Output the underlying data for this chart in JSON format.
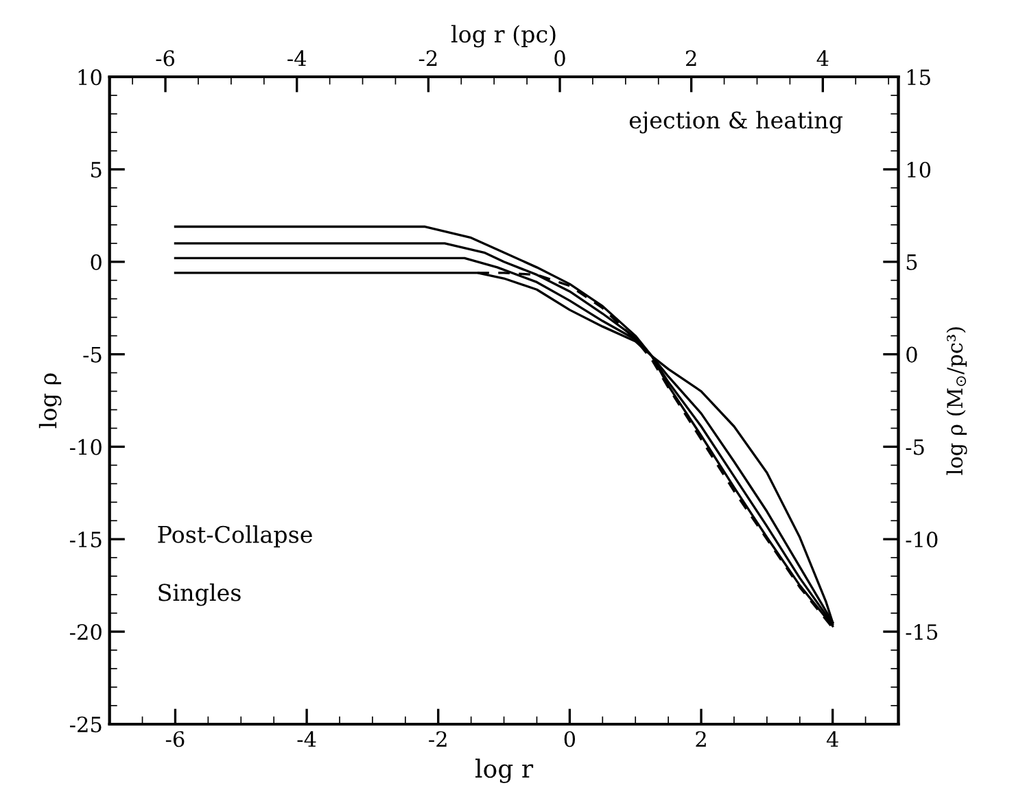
{
  "chart_data": {
    "type": "line",
    "xlabel": "log r",
    "ylabel": "log ρ",
    "y2label": "log ρ (M$_{⊙}$/pc³)",
    "x2label": "log r (pc)",
    "annotations": [
      "ejection & heating",
      "Post-Collapse",
      "Singles"
    ],
    "xlim": [
      -7,
      5
    ],
    "xticks": [
      -6,
      -4,
      -2,
      0,
      2,
      4
    ],
    "x2lim": [
      -6.85,
      5.15
    ],
    "x2ticks": [
      -6,
      -4,
      -2,
      0,
      2,
      4
    ],
    "ylim": [
      -25,
      10
    ],
    "yticks": [
      -25,
      -20,
      -15,
      -10,
      -5,
      0,
      5,
      10
    ],
    "y2lim": [
      -20,
      15
    ],
    "y2ticks": [
      -15,
      -10,
      -5,
      0,
      5,
      10,
      15
    ],
    "grid": false,
    "marker": "none",
    "line_style": "solid",
    "series": [
      {
        "color": "#000000",
        "x": [
          -6,
          -2.2,
          -1.5,
          -1,
          -0.5,
          0,
          0.5,
          1,
          1.25,
          1.5,
          2,
          2.5,
          3,
          3.5,
          4
        ],
        "values": [
          1.9,
          1.9,
          1.3,
          0.5,
          -0.3,
          -1.2,
          -2.4,
          -4.0,
          -5.1,
          -6.7,
          -9.4,
          -12.2,
          -14.9,
          -17.5,
          -19.7
        ]
      },
      {
        "color": "#000000",
        "x": [
          -6,
          -1.9,
          -1.3,
          -1,
          -0.5,
          0,
          0.5,
          1,
          1.25,
          1.5,
          2,
          2.5,
          3,
          3.5,
          4
        ],
        "values": [
          1.0,
          1.0,
          0.5,
          0.0,
          -0.7,
          -1.6,
          -2.8,
          -4.1,
          -5.1,
          -6.5,
          -8.9,
          -11.6,
          -14.3,
          -17.1,
          -19.6
        ]
      },
      {
        "color": "#000000",
        "x": [
          -6,
          -1.6,
          -1.1,
          -0.5,
          0,
          0.5,
          1,
          1.25,
          1.5,
          2,
          2.5,
          3,
          3.5,
          4
        ],
        "values": [
          0.2,
          0.2,
          -0.3,
          -1.1,
          -2.1,
          -3.2,
          -4.2,
          -5.1,
          -6.2,
          -8.2,
          -10.8,
          -13.5,
          -16.5,
          -19.5
        ]
      },
      {
        "color": "#000000",
        "x": [
          -6,
          -1.4,
          -1,
          -0.5,
          0,
          0.5,
          1,
          1.25,
          1.5,
          2,
          2.5,
          3,
          3.5,
          3.9,
          4
        ],
        "values": [
          -0.6,
          -0.6,
          -0.9,
          -1.5,
          -2.6,
          -3.5,
          -4.3,
          -5.1,
          -5.8,
          -7.0,
          -8.9,
          -11.4,
          -14.9,
          -18.4,
          -19.5
        ]
      },
      {
        "color": "#000000",
        "line_style": "dashed",
        "x": [
          -1.4,
          -1,
          -0.5,
          0,
          0.5,
          1,
          1.25,
          1.5,
          2,
          2.5,
          3,
          3.5,
          4
        ],
        "values": [
          -0.6,
          -0.6,
          -0.7,
          -1.3,
          -2.5,
          -4.2,
          -5.3,
          -6.8,
          -9.6,
          -12.4,
          -15.0,
          -17.6,
          -19.8
        ]
      }
    ]
  }
}
